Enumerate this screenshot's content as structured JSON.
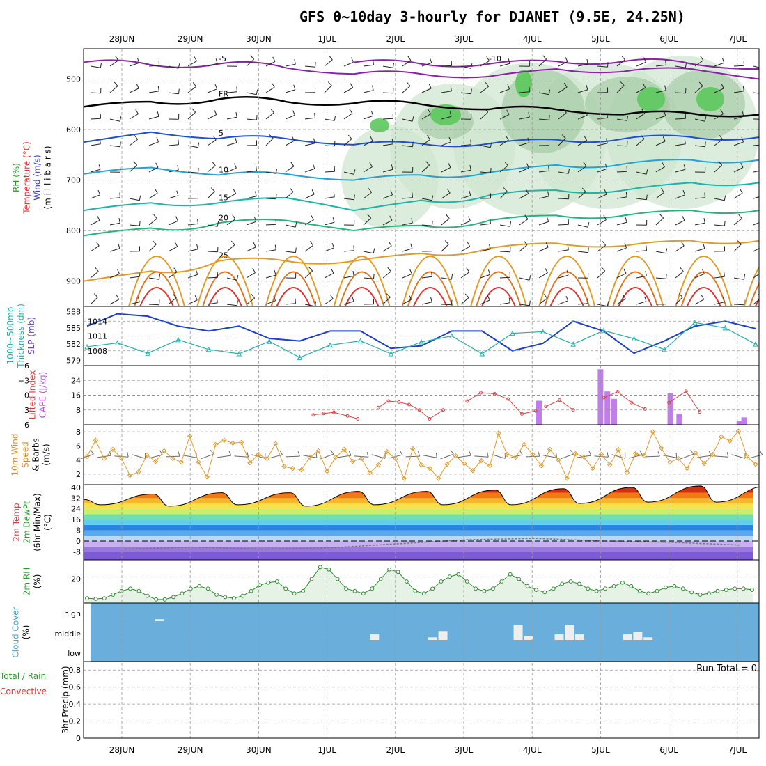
{
  "title": "GFS 0~10day 3-hourly for DJANET (9.5E, 24.25N)",
  "chart_data": {
    "type": "meteogram",
    "dates": [
      "28JUN",
      "29JUN",
      "30JUN",
      "1JUL",
      "2JUL",
      "3JUL",
      "4JUL",
      "5JUL",
      "6JUL",
      "7JUL"
    ],
    "panels": {
      "upper_air": {
        "labels": [
          "RH (%)",
          "Temperature (°C)",
          "Wind (m/s)",
          "(m i l l i b a r s)"
        ],
        "label_colors": [
          "#2c9a2c",
          "#e03030",
          "#3b3bc8",
          "#000000"
        ],
        "yticks": [
          500,
          600,
          700,
          800,
          900
        ],
        "ylim": [
          440,
          950
        ],
        "freezing_label": "FR",
        "isotherms": [
          {
            "label": "-10",
            "color": "#8b1fa8",
            "y": [
              null,
              null,
              null,
              null,
              467,
              470,
              470,
              465,
              465,
              470,
              480
            ]
          },
          {
            "label": "-5",
            "color": "#8b1fa8",
            "y": [
              467,
              472,
              470,
              478,
              490,
              490,
              495,
              480,
              485,
              480,
              500
            ]
          },
          {
            "label": "FR",
            "color": "#000000",
            "y": [
              555,
              545,
              540,
              545,
              548,
              550,
              560,
              560,
              570,
              568,
              570
            ]
          },
          {
            "label": "5",
            "color": "#1d4fd6",
            "y": [
              625,
              605,
              618,
              618,
              630,
              628,
              628,
              620,
              618,
              615,
              615
            ]
          },
          {
            "label": "10",
            "color": "#1ca3d9",
            "y": [
              688,
              675,
              690,
              688,
              700,
              690,
              685,
              670,
              668,
              660,
              660
            ]
          },
          {
            "label": "15",
            "color": "#18b6a8",
            "y": [
              760,
              745,
              745,
              735,
              760,
              740,
              730,
              720,
              720,
              705,
              705
            ]
          },
          {
            "label": "20",
            "color": "#22b57c",
            "y": [
              810,
              795,
              785,
              780,
              800,
              790,
              780,
              770,
              770,
              760,
              760
            ]
          },
          {
            "label": "25",
            "color": "#e39a25",
            "y": [
              900,
              880,
              860,
              860,
              860,
              845,
              835,
              825,
              830,
              820,
              820
            ]
          }
        ]
      },
      "pressure": {
        "labels": [
          "1000~500mb",
          "Thickness (dm)",
          "SLP (mb)"
        ],
        "label_colors": [
          "#20b2aa",
          "#20b2aa",
          "#6a3fd0"
        ],
        "thickness_ticks": [
          579,
          582,
          585,
          588
        ],
        "slp_ticks": [
          1008,
          1011,
          1014
        ],
        "slp_mb": [
          1013,
          1015.5,
          1015,
          1013,
          1012,
          1013,
          1010.5,
          1010,
          1012,
          1012,
          1008.5,
          1009,
          1012,
          1012,
          1008,
          1009.5,
          1014,
          1012,
          1007.5,
          1010,
          1013,
          1014,
          1012.5
        ],
        "thickness_dm": [
          581.5,
          582.2,
          580.3,
          582.8,
          581,
          580.2,
          582.5,
          579.5,
          581.8,
          582.6,
          580.2,
          582.4,
          583.5,
          580.2,
          584,
          584.3,
          582,
          584.5,
          583,
          581,
          586,
          585,
          582
        ]
      },
      "stability": {
        "labels": [
          "Lifted Index",
          "CAPE (J/kg)"
        ],
        "label_colors": [
          "#e04040",
          "#b15ae8"
        ],
        "li_ticks": [
          -6,
          -3,
          0,
          3,
          6
        ],
        "cape_ticks": [
          8,
          16,
          24
        ],
        "li_series": [
          {
            "x": [
              3.3,
              3.45,
              3.6,
              3.8,
              3.95
            ],
            "y": [
              4,
              3.7,
              3.5,
              4.2,
              4.8
            ]
          },
          {
            "x": [
              4.25,
              4.4,
              4.55,
              4.7,
              4.85,
              5.0,
              5.2
            ],
            "y": [
              2.5,
              1.2,
              1.4,
              1.9,
              3,
              4.8,
              3
            ]
          },
          {
            "x": [
              5.55,
              5.75,
              5.95,
              6.15,
              6.35,
              6.55
            ],
            "y": [
              1.2,
              -0.5,
              -0.3,
              0.8,
              3.8,
              3.2
            ]
          },
          {
            "x": [
              6.7,
              6.9,
              7.1
            ],
            "y": [
              2.3,
              1,
              3
            ]
          },
          {
            "x": [
              7.55,
              7.75,
              7.95,
              8.15
            ],
            "y": [
              0.5,
              -0.7,
              1.5,
              2.8
            ]
          },
          {
            "x": [
              8.5,
              8.75,
              8.95
            ],
            "y": [
              1.5,
              -0.8,
              3.4
            ]
          }
        ],
        "cape_bars": [
          {
            "x": 6.6,
            "value": 13
          },
          {
            "x": 7.5,
            "value": 30
          },
          {
            "x": 7.6,
            "value": 18
          },
          {
            "x": 7.7,
            "value": 14
          },
          {
            "x": 8.52,
            "value": 17
          },
          {
            "x": 8.65,
            "value": 6
          },
          {
            "x": 9.53,
            "value": 2
          },
          {
            "x": 9.6,
            "value": 4
          }
        ]
      },
      "wind10m": {
        "labels": [
          "10m Wind",
          "Speed",
          "& Barbs",
          "(m/s)"
        ],
        "label_colors": [
          "#e08a1a",
          "#e08a1a",
          "#000000",
          "#000000"
        ],
        "yticks": [
          2,
          4,
          6,
          8
        ],
        "speed_ms": [
          4.5,
          6.8,
          4.2,
          5.5,
          4.3,
          1.8,
          2.3,
          4.7,
          3.8,
          5.3,
          4.2,
          3.7,
          7.4,
          3.7,
          1.6,
          6.2,
          6.8,
          6.4,
          6.5,
          3.6,
          4.8,
          4.2,
          6.3,
          3.1,
          2.8,
          2.6,
          4.4,
          5.3,
          2.4,
          4.4,
          5.5,
          3.8,
          4.2,
          2.2,
          3.3,
          5.2,
          4.2,
          1.4,
          5.6,
          3.3,
          2.8,
          1.4,
          3.4,
          4.6,
          3.5,
          2.5,
          3.9,
          3.2,
          7.8,
          4.8,
          4.4,
          6.2,
          4.8,
          3.2,
          5.5,
          4.0,
          1.4,
          4.9,
          4.4,
          2.8,
          4.8,
          3.3,
          5.5,
          2.2,
          4.9,
          4.6,
          8.0,
          5.7,
          3.7,
          4.2,
          2.8,
          5.0,
          3.5,
          4.8,
          7.3,
          6.7,
          8.1,
          4.5,
          3.4
        ]
      },
      "temperature2m": {
        "labels": [
          "2m Temp",
          "2m DewPt",
          "(6hr Min/Max)",
          "(°C)"
        ],
        "label_colors": [
          "#e03030",
          "#2c9a2c",
          "#000000",
          "#000000"
        ],
        "yticks": [
          -8,
          0,
          8,
          16,
          24,
          32,
          40
        ],
        "ylim": [
          -14,
          42
        ],
        "temp_max_c": [
          35,
          36,
          36,
          37,
          37,
          38,
          39,
          40,
          41,
          41
        ],
        "temp_min_c": [
          27,
          26,
          27,
          26,
          27,
          27,
          27,
          28,
          29,
          29
        ],
        "dewpt_c": [
          -6,
          -4.5,
          -6,
          -5,
          -2,
          1,
          2,
          0,
          -1,
          -3
        ]
      },
      "rh2m": {
        "labels": [
          "2m RH",
          "(%)"
        ],
        "label_colors": [
          "#2c9a2c",
          "#000000"
        ],
        "yticks": [
          20
        ],
        "ylim": [
          0,
          36
        ],
        "rh_pct": [
          4,
          3.5,
          4,
          7,
          10,
          12,
          10,
          6,
          3,
          3,
          5,
          8,
          12,
          14,
          12,
          7,
          5,
          4,
          6,
          10,
          15,
          17,
          18,
          12,
          8,
          10,
          20,
          30,
          28,
          20,
          12,
          10,
          8,
          12,
          20,
          28,
          26,
          18,
          10,
          8,
          12,
          18,
          22,
          24,
          18,
          12,
          10,
          12,
          18,
          24,
          20,
          14,
          11,
          9,
          12,
          16,
          18,
          16,
          12,
          10,
          12,
          14,
          17,
          14,
          10,
          8,
          10,
          13,
          14,
          12,
          9,
          7,
          8,
          10,
          11,
          12,
          12,
          11
        ]
      },
      "cloud_cover": {
        "labels": [
          "Cloud Cover",
          "(%)"
        ],
        "label_colors": [
          "#4aa0d0",
          "#000000"
        ],
        "levels": [
          "high",
          "middle",
          "low"
        ],
        "background_color": "#6aaedb",
        "bars": [
          {
            "x": 0.55,
            "level": "high",
            "value": 2
          },
          {
            "x": 3.7,
            "level": "middle",
            "value": 8
          },
          {
            "x": 4.55,
            "level": "middle",
            "value": 3
          },
          {
            "x": 4.7,
            "level": "middle",
            "value": 13
          },
          {
            "x": 5.8,
            "level": "middle",
            "value": 23
          },
          {
            "x": 5.95,
            "level": "middle",
            "value": 5
          },
          {
            "x": 6.4,
            "level": "middle",
            "value": 8
          },
          {
            "x": 6.55,
            "level": "middle",
            "value": 23
          },
          {
            "x": 6.7,
            "level": "middle",
            "value": 8
          },
          {
            "x": 7.4,
            "level": "middle",
            "value": 8
          },
          {
            "x": 7.55,
            "level": "middle",
            "value": 12
          },
          {
            "x": 7.7,
            "level": "middle",
            "value": 3
          }
        ]
      },
      "precip": {
        "labels": [
          "Total / Rain",
          "Convective",
          "3hr Precip (mm)"
        ],
        "label_colors": [
          "#2c9a2c",
          "#e03030",
          "#000000"
        ],
        "yticks": [
          0,
          0.2,
          0.4,
          0.6,
          0.8
        ],
        "ylim": [
          0,
          0.9
        ],
        "run_total_label": "Run Total = 0",
        "values_mm": []
      }
    }
  }
}
